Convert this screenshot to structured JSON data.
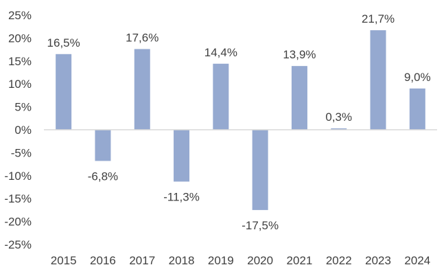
{
  "chart_data": {
    "type": "bar",
    "title": "",
    "xlabel": "",
    "ylabel": "",
    "categories": [
      "2015",
      "2016",
      "2017",
      "2018",
      "2019",
      "2020",
      "2021",
      "2022",
      "2023",
      "2024"
    ],
    "values": [
      16.5,
      -6.8,
      17.6,
      -11.3,
      14.4,
      -17.5,
      13.9,
      0.3,
      21.7,
      9.0
    ],
    "data_labels": [
      "16,5%",
      "-6,8%",
      "17,6%",
      "-11,3%",
      "14,4%",
      "-17,5%",
      "13,9%",
      "0,3%",
      "21,7%",
      "9,0%"
    ],
    "ylim": [
      -25,
      25
    ],
    "y_ticks": [
      25,
      20,
      15,
      10,
      5,
      0,
      -5,
      -10,
      -15,
      -20,
      -25
    ],
    "y_tick_labels": [
      "25%",
      "20%",
      "15%",
      "10%",
      "5%",
      "0%",
      "-5%",
      "-10%",
      "-15%",
      "-20%",
      "-25%"
    ],
    "grid": false,
    "legend": "none",
    "bar_color": "#95a9d0"
  }
}
